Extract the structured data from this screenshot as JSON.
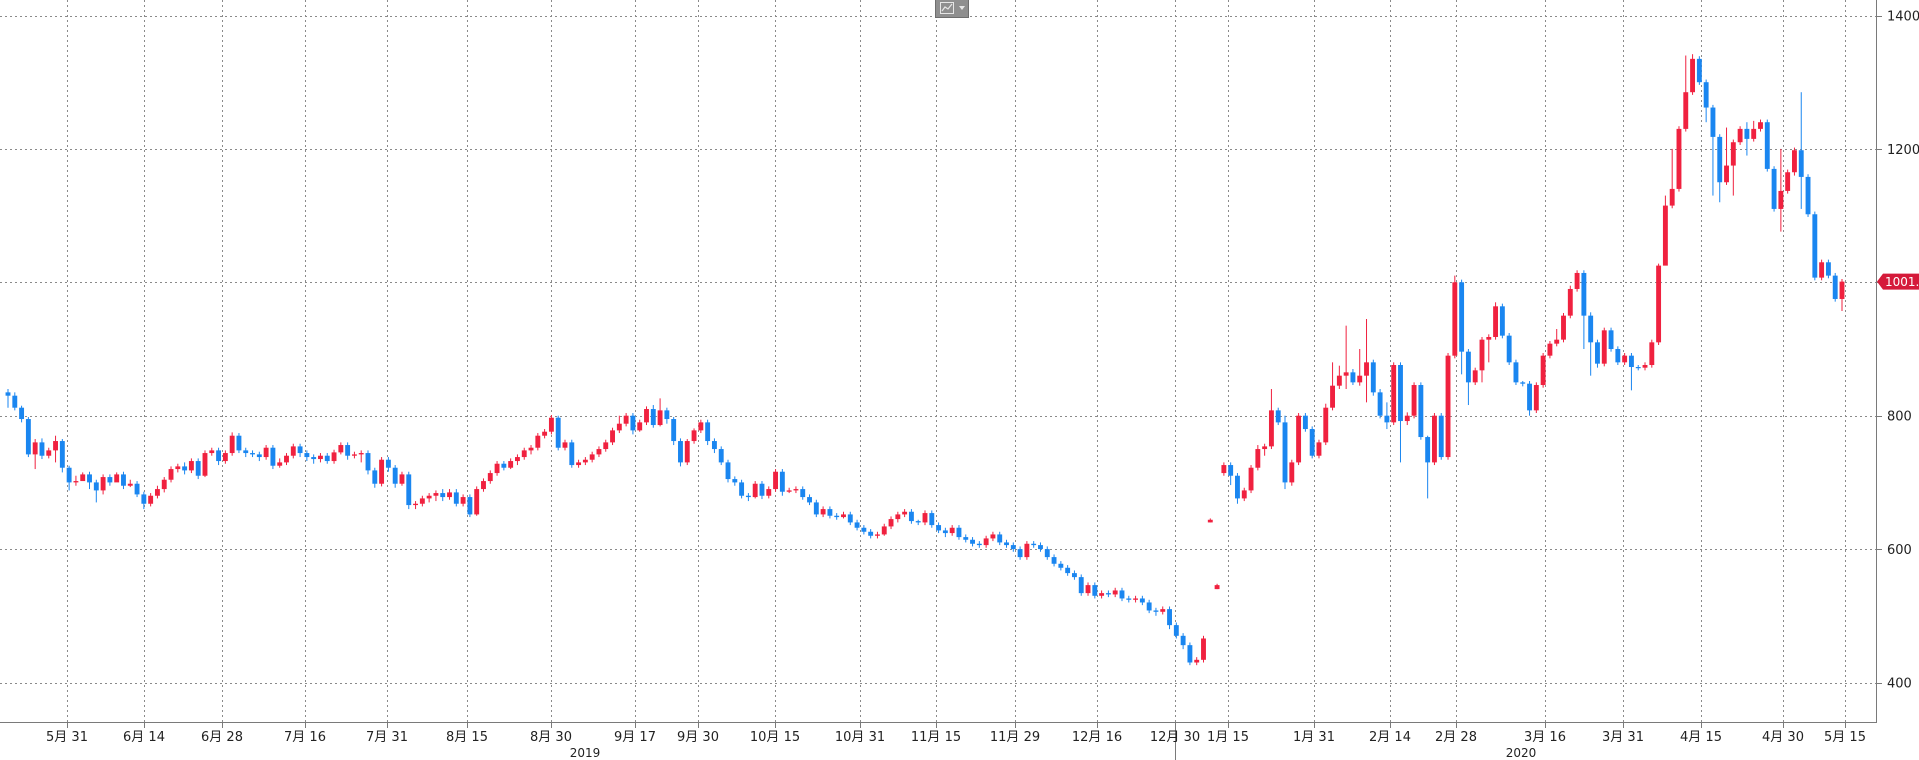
{
  "chart_data": {
    "type": "candlestick",
    "ylim": [
      330,
      1415
    ],
    "y_ticks": [
      400,
      600,
      800,
      1000,
      1200,
      1400
    ],
    "grid": true,
    "colors": {
      "up": "#f0213f",
      "down": "#1a86f0",
      "last_price_tag": "#d51a3a"
    },
    "last_price_label": "1001.0",
    "x_tick_labels": [
      "5月 31",
      "6月 14",
      "6月 28",
      "7月 16",
      "7月 31",
      "8月 15",
      "8月 30",
      "9月 17",
      "9月 30",
      "10月 15",
      "10月 31",
      "11月 15",
      "11月 29",
      "12月 16",
      "12月 30",
      "1月 15",
      "1月 31",
      "2月 14",
      "2月 28",
      "3月 16",
      "3月 31",
      "4月 15",
      "4月 30",
      "5月 15"
    ],
    "year_labels": [
      "2019",
      "2020"
    ],
    "candles": [
      [
        835,
        830,
        840,
        812
      ],
      [
        830,
        812,
        835,
        808
      ],
      [
        812,
        795,
        815,
        790
      ],
      [
        795,
        742,
        798,
        738
      ],
      [
        742,
        760,
        765,
        720
      ],
      [
        760,
        740,
        766,
        735
      ],
      [
        740,
        748,
        752,
        736
      ],
      [
        748,
        762,
        770,
        730
      ],
      [
        762,
        722,
        765,
        715
      ],
      [
        722,
        700,
        725,
        688
      ],
      [
        700,
        702,
        710,
        695
      ],
      [
        702,
        712,
        715,
        704
      ],
      [
        712,
        700,
        716,
        690
      ],
      [
        700,
        688,
        704,
        670
      ],
      [
        688,
        708,
        712,
        682
      ],
      [
        708,
        700,
        712,
        695
      ],
      [
        700,
        712,
        715,
        705
      ],
      [
        712,
        695,
        716,
        690
      ],
      [
        695,
        698,
        704,
        693
      ],
      [
        698,
        682,
        702,
        678
      ],
      [
        682,
        668,
        686,
        660
      ],
      [
        668,
        680,
        684,
        664
      ],
      [
        680,
        690,
        695,
        676
      ],
      [
        690,
        704,
        708,
        685
      ],
      [
        704,
        720,
        724,
        700
      ],
      [
        720,
        724,
        728,
        715
      ],
      [
        724,
        718,
        730,
        712
      ],
      [
        718,
        732,
        736,
        714
      ],
      [
        732,
        710,
        736,
        705
      ],
      [
        710,
        744,
        748,
        708
      ],
      [
        744,
        748,
        752,
        740
      ],
      [
        748,
        732,
        752,
        726
      ],
      [
        732,
        744,
        748,
        728
      ],
      [
        744,
        770,
        775,
        740
      ],
      [
        770,
        748,
        774,
        744
      ],
      [
        748,
        744,
        752,
        738
      ],
      [
        744,
        742,
        748,
        738
      ],
      [
        742,
        738,
        746,
        732
      ],
      [
        738,
        752,
        756,
        734
      ],
      [
        752,
        725,
        756,
        720
      ],
      [
        725,
        730,
        736,
        722
      ],
      [
        730,
        740,
        744,
        726
      ],
      [
        740,
        754,
        758,
        736
      ],
      [
        754,
        744,
        758,
        738
      ],
      [
        744,
        738,
        748,
        732
      ],
      [
        738,
        735,
        742,
        728
      ],
      [
        735,
        740,
        744,
        730
      ],
      [
        740,
        732,
        744,
        728
      ],
      [
        732,
        745,
        749,
        728
      ],
      [
        745,
        756,
        760,
        742
      ],
      [
        756,
        740,
        760,
        734
      ],
      [
        740,
        742,
        746,
        736
      ],
      [
        742,
        744,
        748,
        730
      ],
      [
        744,
        718,
        748,
        712
      ],
      [
        718,
        698,
        722,
        692
      ],
      [
        698,
        734,
        738,
        694
      ],
      [
        734,
        722,
        738,
        716
      ],
      [
        722,
        698,
        726,
        692
      ],
      [
        698,
        712,
        716,
        695
      ],
      [
        712,
        666,
        716,
        660
      ],
      [
        666,
        668,
        672,
        660
      ],
      [
        668,
        676,
        680,
        664
      ],
      [
        676,
        680,
        684,
        670
      ],
      [
        680,
        684,
        688,
        672
      ],
      [
        684,
        678,
        690,
        672
      ],
      [
        678,
        685,
        690,
        674
      ],
      [
        685,
        668,
        690,
        664
      ],
      [
        668,
        678,
        682,
        664
      ],
      [
        678,
        652,
        682,
        648
      ],
      [
        652,
        690,
        694,
        650
      ],
      [
        690,
        702,
        706,
        686
      ],
      [
        702,
        714,
        718,
        698
      ],
      [
        714,
        728,
        732,
        710
      ],
      [
        728,
        722,
        732,
        718
      ],
      [
        722,
        732,
        736,
        720
      ],
      [
        732,
        738,
        742,
        726
      ],
      [
        738,
        748,
        752,
        734
      ],
      [
        748,
        752,
        756,
        742
      ],
      [
        752,
        770,
        774,
        748
      ],
      [
        770,
        776,
        780,
        766
      ],
      [
        776,
        797,
        801,
        772
      ],
      [
        797,
        752,
        800,
        748
      ],
      [
        752,
        760,
        764,
        748
      ],
      [
        760,
        726,
        764,
        722
      ],
      [
        726,
        730,
        734,
        722
      ],
      [
        730,
        734,
        738,
        726
      ],
      [
        734,
        742,
        746,
        730
      ],
      [
        742,
        750,
        754,
        738
      ],
      [
        750,
        760,
        764,
        746
      ],
      [
        760,
        778,
        782,
        756
      ],
      [
        778,
        788,
        800,
        774
      ],
      [
        788,
        800,
        804,
        784
      ],
      [
        800,
        778,
        804,
        772
      ],
      [
        778,
        790,
        794,
        776
      ],
      [
        790,
        810,
        814,
        786
      ],
      [
        810,
        786,
        816,
        782
      ],
      [
        786,
        808,
        826,
        784
      ],
      [
        808,
        795,
        812,
        788
      ],
      [
        795,
        762,
        798,
        756
      ],
      [
        762,
        730,
        766,
        724
      ],
      [
        730,
        762,
        765,
        726
      ],
      [
        762,
        778,
        781,
        758
      ],
      [
        778,
        790,
        794,
        774
      ],
      [
        790,
        762,
        794,
        756
      ],
      [
        762,
        750,
        766,
        744
      ],
      [
        750,
        730,
        754,
        726
      ],
      [
        730,
        705,
        734,
        700
      ],
      [
        705,
        700,
        709,
        695
      ],
      [
        700,
        680,
        704,
        676
      ],
      [
        680,
        678,
        684,
        672
      ],
      [
        678,
        698,
        702,
        676
      ],
      [
        698,
        680,
        702,
        675
      ],
      [
        680,
        690,
        694,
        676
      ],
      [
        690,
        716,
        720,
        686
      ],
      [
        716,
        686,
        720,
        680
      ],
      [
        686,
        688,
        692,
        684
      ],
      [
        688,
        690,
        694,
        684
      ],
      [
        690,
        678,
        694,
        674
      ],
      [
        678,
        670,
        682,
        666
      ],
      [
        670,
        652,
        674,
        648
      ],
      [
        652,
        660,
        664,
        648
      ],
      [
        660,
        650,
        664,
        646
      ],
      [
        650,
        648,
        654,
        644
      ],
      [
        648,
        652,
        656,
        646
      ],
      [
        652,
        640,
        656,
        636
      ],
      [
        640,
        632,
        644,
        628
      ],
      [
        632,
        626,
        636,
        622
      ],
      [
        626,
        620,
        630,
        616
      ],
      [
        620,
        622,
        626,
        616
      ],
      [
        622,
        634,
        638,
        620
      ],
      [
        634,
        645,
        649,
        630
      ],
      [
        645,
        652,
        656,
        640
      ],
      [
        652,
        656,
        660,
        648
      ],
      [
        656,
        642,
        660,
        638
      ],
      [
        642,
        640,
        644,
        636
      ],
      [
        640,
        654,
        658,
        636
      ],
      [
        654,
        636,
        658,
        632
      ],
      [
        636,
        628,
        640,
        624
      ],
      [
        628,
        624,
        632,
        618
      ],
      [
        624,
        632,
        636,
        620
      ],
      [
        632,
        618,
        636,
        614
      ],
      [
        618,
        614,
        622,
        610
      ],
      [
        614,
        608,
        618,
        604
      ],
      [
        608,
        606,
        612,
        602
      ],
      [
        606,
        616,
        620,
        602
      ],
      [
        616,
        622,
        626,
        612
      ],
      [
        622,
        610,
        626,
        606
      ],
      [
        610,
        606,
        614,
        602
      ],
      [
        606,
        600,
        610,
        596
      ],
      [
        600,
        588,
        604,
        584
      ],
      [
        588,
        608,
        612,
        584
      ],
      [
        608,
        606,
        612,
        602
      ],
      [
        606,
        600,
        610,
        596
      ],
      [
        600,
        588,
        604,
        584
      ],
      [
        588,
        578,
        592,
        574
      ],
      [
        578,
        572,
        582,
        568
      ],
      [
        572,
        564,
        576,
        560
      ],
      [
        564,
        558,
        568,
        554
      ],
      [
        558,
        534,
        562,
        530
      ],
      [
        534,
        546,
        550,
        530
      ],
      [
        546,
        530,
        550,
        526
      ],
      [
        530,
        534,
        538,
        526
      ],
      [
        534,
        532,
        538,
        528
      ],
      [
        532,
        538,
        542,
        528
      ],
      [
        538,
        526,
        542,
        522
      ],
      [
        526,
        524,
        530,
        520
      ],
      [
        524,
        526,
        530,
        520
      ],
      [
        526,
        520,
        530,
        516
      ],
      [
        520,
        508,
        524,
        504
      ],
      [
        508,
        506,
        512,
        500
      ],
      [
        506,
        510,
        514,
        502
      ],
      [
        510,
        486,
        514,
        480
      ],
      [
        486,
        470,
        490,
        466
      ],
      [
        470,
        456,
        474,
        450
      ],
      [
        456,
        430,
        460,
        426
      ],
      [
        430,
        434,
        438,
        426
      ],
      [
        434,
        466,
        470,
        430
      ],
      [
        640,
        644,
        646,
        640
      ],
      [
        540,
        546,
        548,
        540
      ],
      [
        714,
        726,
        730,
        710
      ],
      [
        726,
        710,
        730,
        696
      ],
      [
        710,
        676,
        714,
        668
      ],
      [
        676,
        688,
        692,
        672
      ],
      [
        688,
        722,
        726,
        684
      ],
      [
        722,
        750,
        756,
        718
      ],
      [
        750,
        754,
        758,
        740
      ],
      [
        754,
        808,
        840,
        750
      ],
      [
        808,
        790,
        812,
        786
      ],
      [
        790,
        700,
        800,
        690
      ],
      [
        700,
        730,
        734,
        695
      ],
      [
        730,
        800,
        804,
        726
      ],
      [
        800,
        780,
        804,
        776
      ],
      [
        780,
        740,
        784,
        736
      ],
      [
        740,
        760,
        764,
        736
      ],
      [
        760,
        812,
        818,
        756
      ],
      [
        812,
        845,
        880,
        808
      ],
      [
        845,
        860,
        875,
        840
      ],
      [
        860,
        865,
        935,
        840
      ],
      [
        865,
        850,
        870,
        846
      ],
      [
        850,
        860,
        900,
        845
      ],
      [
        860,
        880,
        945,
        820
      ],
      [
        880,
        835,
        884,
        830
      ],
      [
        835,
        800,
        840,
        796
      ],
      [
        800,
        790,
        820,
        780
      ],
      [
        790,
        876,
        880,
        786
      ],
      [
        876,
        792,
        880,
        730
      ],
      [
        792,
        800,
        805,
        786
      ],
      [
        800,
        846,
        850,
        796
      ],
      [
        846,
        768,
        850,
        764
      ],
      [
        768,
        730,
        770,
        676
      ],
      [
        730,
        800,
        804,
        726
      ],
      [
        800,
        738,
        804,
        734
      ],
      [
        738,
        890,
        894,
        734
      ],
      [
        890,
        1000,
        1010,
        886
      ],
      [
        1000,
        896,
        1004,
        862
      ],
      [
        896,
        850,
        900,
        816
      ],
      [
        850,
        868,
        872,
        846
      ],
      [
        868,
        914,
        918,
        850
      ],
      [
        914,
        918,
        922,
        880
      ],
      [
        918,
        964,
        970,
        914
      ],
      [
        964,
        920,
        968,
        916
      ],
      [
        920,
        880,
        924,
        876
      ],
      [
        880,
        850,
        884,
        846
      ],
      [
        850,
        848,
        852,
        844
      ],
      [
        848,
        808,
        852,
        800
      ],
      [
        808,
        846,
        850,
        804
      ],
      [
        846,
        890,
        894,
        842
      ],
      [
        890,
        908,
        912,
        886
      ],
      [
        908,
        914,
        930,
        904
      ],
      [
        914,
        950,
        954,
        910
      ],
      [
        950,
        990,
        995,
        946
      ],
      [
        990,
        1014,
        1018,
        986
      ],
      [
        1014,
        950,
        1018,
        900
      ],
      [
        950,
        910,
        955,
        860
      ],
      [
        910,
        878,
        914,
        872
      ],
      [
        878,
        928,
        932,
        874
      ],
      [
        928,
        900,
        932,
        896
      ],
      [
        900,
        880,
        904,
        876
      ],
      [
        880,
        890,
        894,
        876
      ],
      [
        890,
        873,
        894,
        838
      ],
      [
        873,
        872,
        876,
        868
      ],
      [
        872,
        876,
        880,
        868
      ],
      [
        876,
        910,
        914,
        872
      ],
      [
        910,
        1025,
        1028,
        906
      ],
      [
        1025,
        1115,
        1130,
        1095
      ],
      [
        1115,
        1140,
        1200,
        1111
      ],
      [
        1140,
        1230,
        1234,
        1136
      ],
      [
        1230,
        1285,
        1340,
        1226
      ],
      [
        1285,
        1335,
        1342,
        1281
      ],
      [
        1335,
        1300,
        1339,
        1296
      ],
      [
        1300,
        1262,
        1304,
        1240
      ],
      [
        1262,
        1218,
        1266,
        1130
      ],
      [
        1218,
        1150,
        1222,
        1120
      ],
      [
        1150,
        1175,
        1232,
        1146
      ],
      [
        1175,
        1210,
        1214,
        1130
      ],
      [
        1210,
        1230,
        1234,
        1206
      ],
      [
        1230,
        1215,
        1240,
        1190
      ],
      [
        1215,
        1230,
        1242,
        1211
      ],
      [
        1230,
        1240,
        1244,
        1226
      ],
      [
        1240,
        1170,
        1244,
        1166
      ],
      [
        1170,
        1110,
        1174,
        1106
      ],
      [
        1110,
        1137,
        1200,
        1076
      ],
      [
        1137,
        1165,
        1169,
        1133
      ],
      [
        1165,
        1198,
        1202,
        1160
      ],
      [
        1198,
        1158,
        1285,
        1110
      ],
      [
        1158,
        1102,
        1162,
        1098
      ],
      [
        1102,
        1007,
        1106,
        1003
      ],
      [
        1007,
        1030,
        1034,
        1003
      ],
      [
        1030,
        1010,
        1034,
        1006
      ],
      [
        1010,
        975,
        1014,
        971
      ],
      [
        975,
        1001,
        1005,
        957
      ]
    ]
  }
}
